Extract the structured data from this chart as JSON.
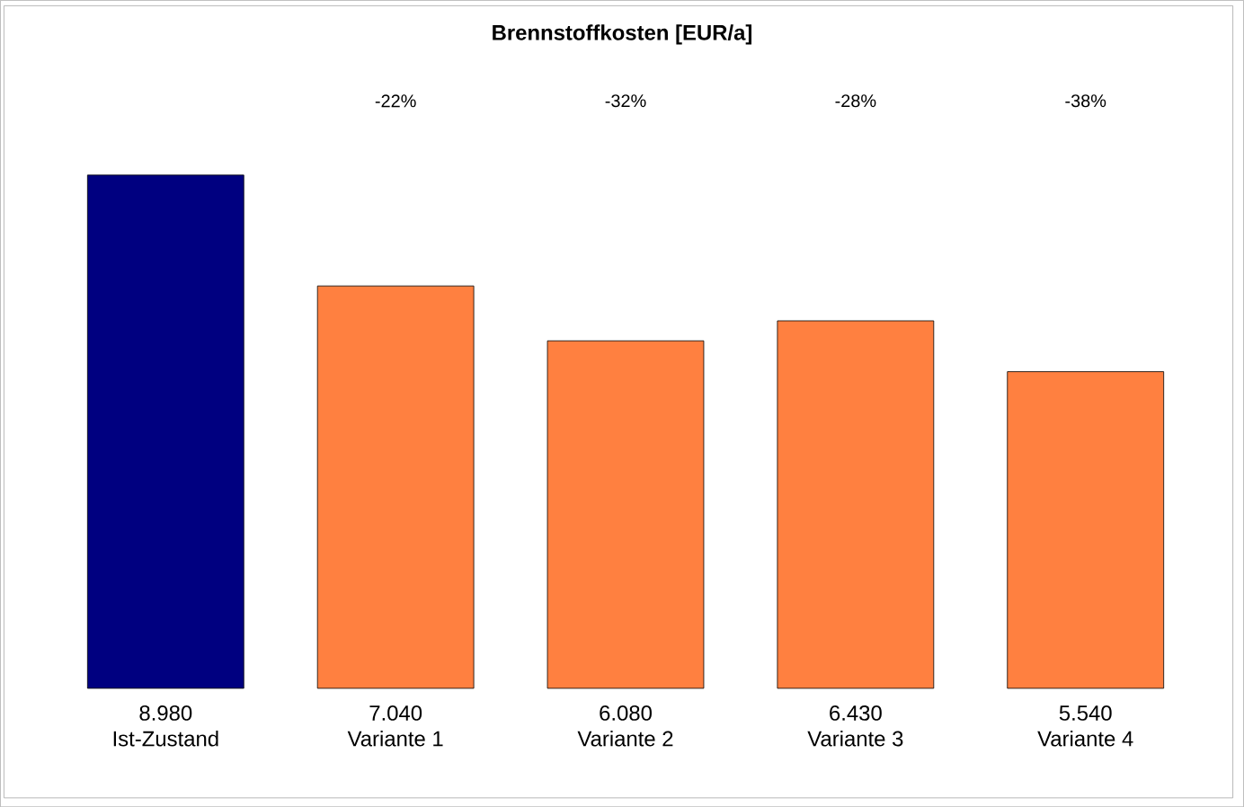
{
  "chart_data": {
    "type": "bar",
    "title": "Brennstoffkosten  [EUR/a]",
    "categories": [
      "Ist-Zustand",
      "Variante 1",
      "Variante 2",
      "Variante 3",
      "Variante 4"
    ],
    "values": [
      8980,
      7040,
      6080,
      6430,
      5540
    ],
    "value_labels": [
      "8.980",
      "7.040",
      "6.080",
      "6.430",
      "5.540"
    ],
    "colors": [
      "#000080",
      "#ff8040",
      "#ff8040",
      "#ff8040",
      "#ff8040"
    ],
    "annotations": [
      "-22%",
      "-32%",
      "-28%",
      "-38%"
    ]
  }
}
